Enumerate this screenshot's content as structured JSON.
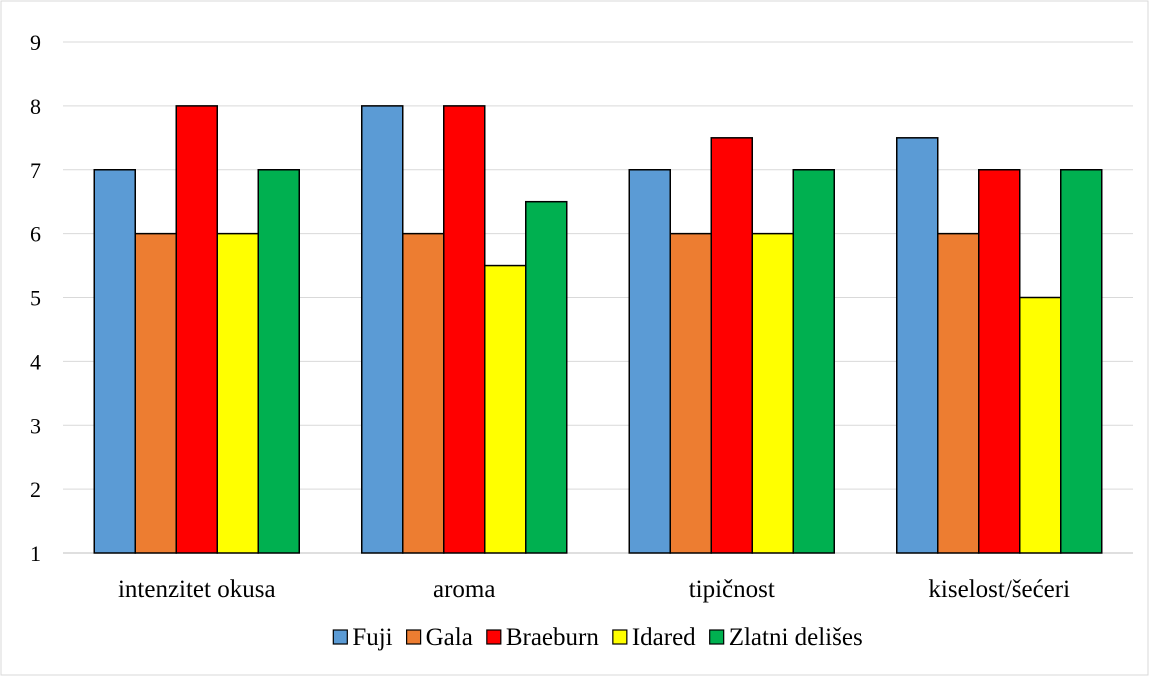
{
  "chart_data": {
    "type": "bar",
    "categories": [
      "intenzitet okusa",
      "aroma",
      "tipičnost",
      "kiselost/šećeri"
    ],
    "series": [
      {
        "name": "Fuji",
        "color": "#5B9BD5",
        "values": [
          7,
          8,
          7,
          7.5
        ]
      },
      {
        "name": "Gala",
        "color": "#ED7D31",
        "values": [
          6,
          6,
          6,
          6
        ]
      },
      {
        "name": "Braeburn",
        "color": "#FF0000",
        "values": [
          8,
          8,
          7.5,
          7
        ]
      },
      {
        "name": "Idared",
        "color": "#FFFF00",
        "values": [
          6,
          5.5,
          6,
          5
        ]
      },
      {
        "name": "Zlatni delišes",
        "color": "#00B050",
        "values": [
          7,
          6.5,
          7,
          7
        ]
      }
    ],
    "ylim": [
      1,
      9
    ],
    "yticks": [
      "1",
      "2",
      "3",
      "4",
      "5",
      "6",
      "7",
      "8",
      "9"
    ],
    "grid": true,
    "legend_position": "bottom",
    "title": "",
    "xlabel": "",
    "ylabel": ""
  }
}
